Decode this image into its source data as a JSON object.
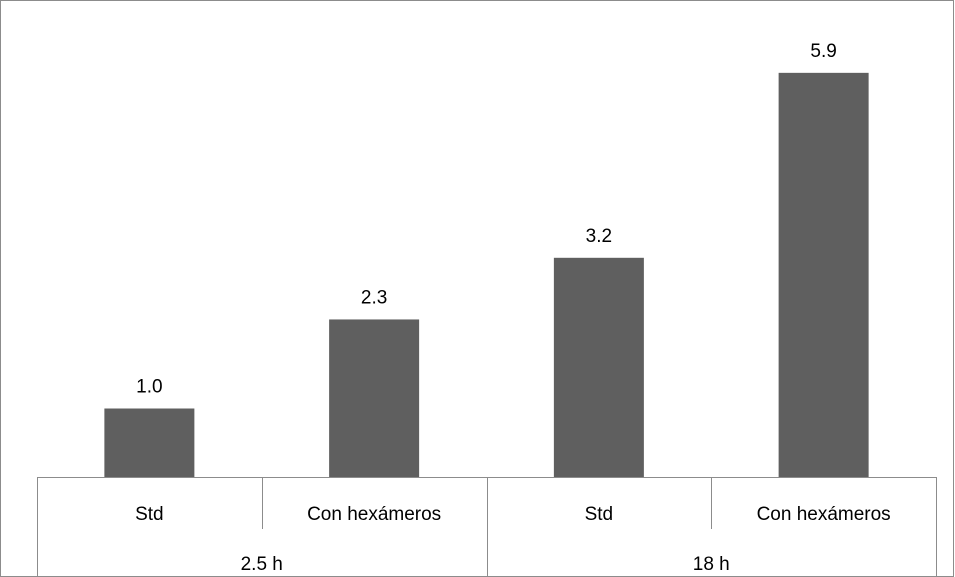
{
  "chart_data": {
    "type": "bar",
    "categories": [
      "Std",
      "Con hexámeros",
      "Std",
      "Con hexámeros"
    ],
    "groups": [
      {
        "label": "2.5 h",
        "span": [
          0,
          1
        ]
      },
      {
        "label": "18 h",
        "span": [
          2,
          3
        ]
      }
    ],
    "values": [
      1.0,
      2.3,
      3.2,
      5.9
    ],
    "value_labels": [
      "1.0",
      "2.3",
      "3.2",
      "5.9"
    ],
    "title": "",
    "xlabel": "",
    "ylabel": "",
    "ylim": [
      0,
      6.8
    ],
    "grid": false,
    "legend": "none",
    "bar_color": "#5f5f5f"
  }
}
